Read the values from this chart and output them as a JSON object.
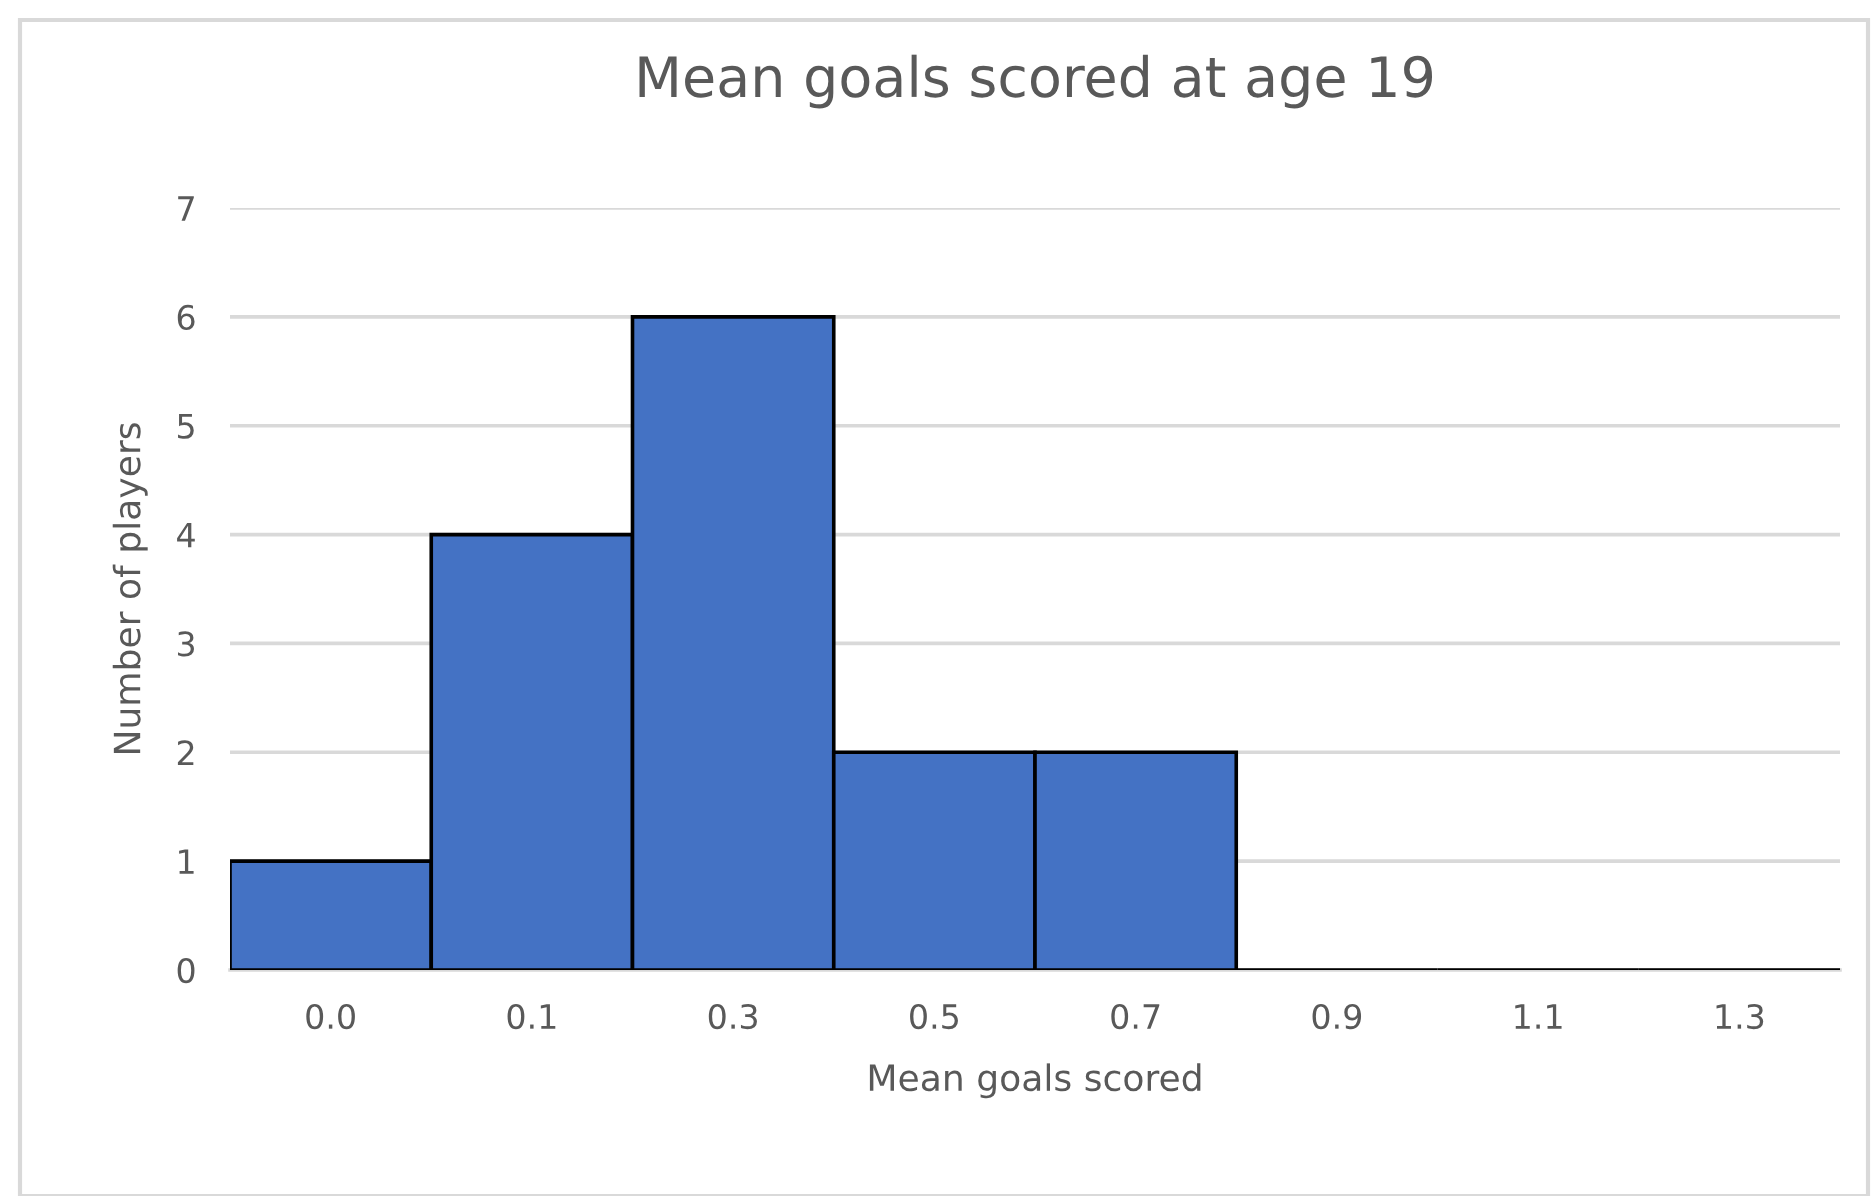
{
  "chart_data": {
    "type": "bar",
    "title": "Mean goals scored at age 19",
    "xlabel": "Mean goals scored",
    "ylabel": "Number of players",
    "categories": [
      "0.0",
      "0.1",
      "0.3",
      "0.5",
      "0.7",
      "0.9",
      "1.1",
      "1.3"
    ],
    "values": [
      1,
      4,
      6,
      2,
      2,
      0,
      0,
      0
    ],
    "color": "#4472c4",
    "ylim": [
      0,
      7
    ],
    "yticks": [
      0,
      1,
      2,
      3,
      4,
      5,
      6,
      7
    ],
    "grid": "y"
  }
}
